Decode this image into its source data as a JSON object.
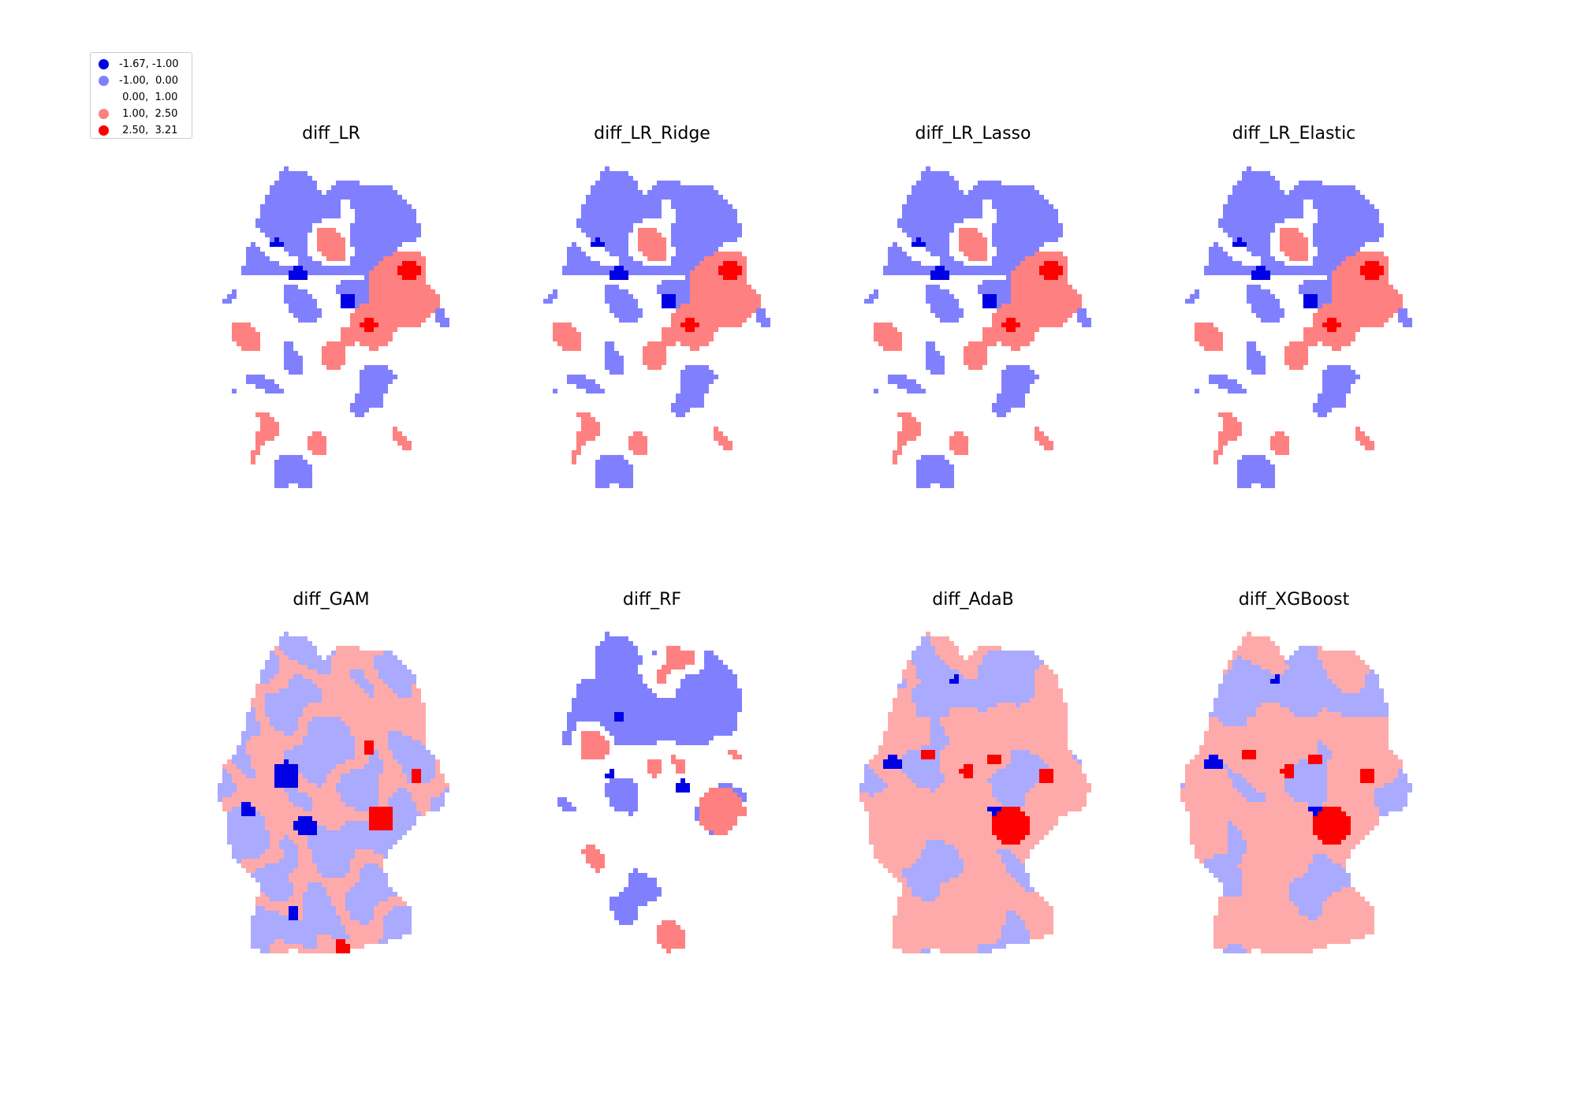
{
  "legend": {
    "items": [
      {
        "label": "-1.67, -1.00",
        "color": "#0000e6"
      },
      {
        "label": "-1.00,  0.00",
        "color": "#8080ff"
      },
      {
        "label": " 0.00,  1.00",
        "color": "#ffffff"
      },
      {
        "label": " 1.00,  2.50",
        "color": "#ff8080"
      },
      {
        "label": " 2.50,  3.21",
        "color": "#ff0000"
      }
    ]
  },
  "panels": [
    {
      "title": "diff_LR",
      "scheme": "linear"
    },
    {
      "title": "diff_LR_Ridge",
      "scheme": "linear"
    },
    {
      "title": "diff_LR_Lasso",
      "scheme": "linear"
    },
    {
      "title": "diff_LR_Elastic",
      "scheme": "linear"
    },
    {
      "title": "diff_GAM",
      "scheme": "gam"
    },
    {
      "title": "diff_RF",
      "scheme": "rf"
    },
    {
      "title": "diff_AdaB",
      "scheme": "boost"
    },
    {
      "title": "diff_XGBoost",
      "scheme": "boost"
    }
  ],
  "colors": {
    "dark_blue": "#0000e6",
    "mid_blue": "#8080ff",
    "light_blue": "#aaaaff",
    "light_red": "#ffaaaa",
    "mid_red": "#ff8080",
    "red": "#ff0000"
  }
}
